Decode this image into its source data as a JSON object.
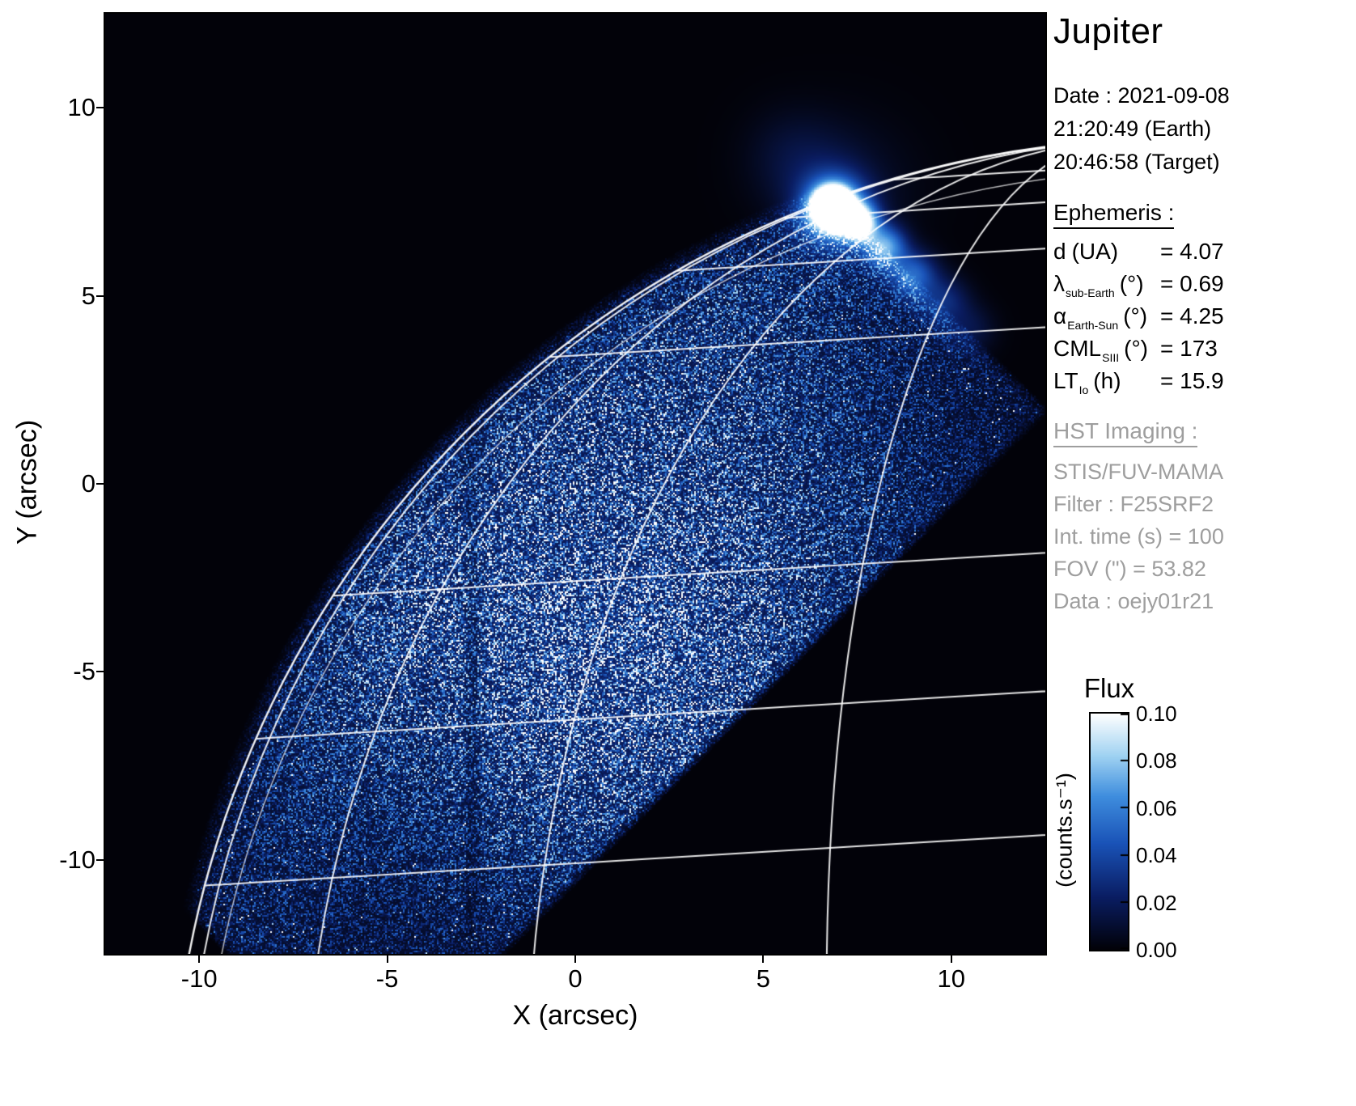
{
  "title": "Jupiter",
  "info": {
    "date_label": "Date : 2021-09-08",
    "time_earth": "21:20:49 (Earth)",
    "time_target": "20:46:58 (Target)"
  },
  "ephemeris": {
    "heading": "Ephemeris :",
    "rows": [
      {
        "symbol": "d",
        "sub": "",
        "unit": "(UA)",
        "value": "= 4.07"
      },
      {
        "symbol": "λ",
        "sub": "sub-Earth",
        "unit": "(°)",
        "value": "= 0.69"
      },
      {
        "symbol": "α",
        "sub": "Earth-Sun",
        "unit": "(°)",
        "value": "= 4.25"
      },
      {
        "symbol": "CML",
        "sub": "SIII",
        "unit": "(°)",
        "value": "= 173"
      },
      {
        "symbol": "LT",
        "sub": "Io",
        "unit": "(h)",
        "value": "= 15.9"
      }
    ]
  },
  "hst": {
    "heading": "HST Imaging :",
    "lines": [
      "STIS/FUV-MAMA",
      "Filter : F25SRF2",
      "Int. time (s) = 100",
      "FOV (\") = 53.82",
      "Data : oejy01r21"
    ],
    "color": "#9e9e9e"
  },
  "colorbar": {
    "title": "Flux",
    "unit": "(counts.s⁻¹)",
    "ticks": [
      "0.10",
      "0.08",
      "0.06",
      "0.04",
      "0.02",
      "0.00"
    ]
  },
  "chart_data": {
    "type": "heatmap",
    "title": "Jupiter",
    "xlabel": "X (arcsec)",
    "ylabel": "Y (arcsec)",
    "xlim": [
      -12.5,
      12.5
    ],
    "ylim": [
      -12.5,
      12.5
    ],
    "xticks": [
      -10,
      -5,
      0,
      5,
      10
    ],
    "yticks": [
      10,
      5,
      0,
      -5,
      -10
    ],
    "flux_min": 0.0,
    "flux_max": 0.1,
    "background": "#000000",
    "grid_color": "#ffffff",
    "colormap_stops": [
      [
        0,
        "#020209"
      ],
      [
        0.22,
        "#0a1d62"
      ],
      [
        0.45,
        "#1a53b8"
      ],
      [
        0.65,
        "#3f8ede"
      ],
      [
        0.82,
        "#9fd2f2"
      ],
      [
        1,
        "#ffffff"
      ]
    ],
    "disk": {
      "center": [
        15.92,
        -17.47
      ],
      "radius": 26.65,
      "inner_radius_offset": 0.85,
      "pole_tilt": [
        -0.06,
        0.998
      ]
    },
    "aperture": {
      "sum_max": 14.6,
      "diff_min": -10.7,
      "sum_min": -21.8
    },
    "latitude_lines_deg": [
      18.2,
      27.1,
      36.4,
      54.9,
      63.7,
      70.5,
      77
    ],
    "meridian_lines_deg": [
      110,
      130,
      150,
      170
    ],
    "dayglow": {
      "floor": 0.16,
      "blobs": [
        [
          0.8,
          -4.6,
          5.2,
          4.6,
          0.55
        ],
        [
          4.6,
          2.6,
          3.6,
          3.2,
          0.18
        ]
      ],
      "limb_brighten": [
        1.6,
        1.3,
        0.1
      ]
    },
    "aurora_blobs": [
      [
        6.85,
        7.35,
        0.3,
        2.6
      ],
      [
        6.9,
        7.3,
        0.6,
        0.9
      ],
      [
        7.55,
        6.95,
        0.33,
        1.0
      ],
      [
        8.25,
        6.3,
        0.38,
        0.7
      ],
      [
        9.0,
        5.55,
        0.42,
        0.5
      ],
      [
        9.8,
        4.85,
        0.45,
        0.28
      ],
      [
        10.5,
        4.1,
        0.45,
        0.15
      ]
    ],
    "glow_blobs": [
      [
        6.2,
        8.3,
        0.9,
        0.1
      ],
      [
        5.6,
        8.9,
        0.8,
        0.05
      ],
      [
        7.3,
        7.9,
        1.2,
        0.08
      ]
    ],
    "noise": {
      "seed": 20210908,
      "speckle_base": 0.3,
      "speckle_amp": 1.7,
      "hot_prob": 0.012
    },
    "seam_x": -2.75
  }
}
